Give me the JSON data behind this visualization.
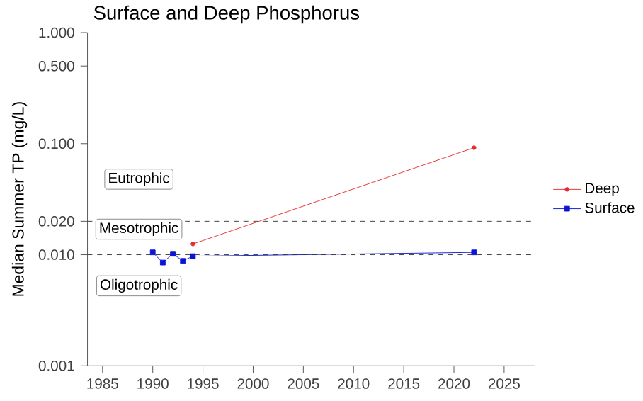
{
  "chart_data": {
    "type": "line",
    "title": "Surface and Deep Phosphorus",
    "ylabel": "Median Summer TP (mg/L)",
    "log": "y",
    "grid": false,
    "legend": "right",
    "xlim": [
      1983.5,
      2028
    ],
    "xticks": [
      1985,
      1990,
      1995,
      2000,
      2005,
      2010,
      2015,
      2020,
      2025
    ],
    "ylim": [
      0.001,
      1
    ],
    "yticks": [
      {
        "value": 0.001,
        "label": "0.001"
      },
      {
        "value": 0.01,
        "label": "0.010"
      },
      {
        "value": 0.02,
        "label": "0.020"
      },
      {
        "value": 0.1,
        "label": "0.100"
      },
      {
        "value": 0.5,
        "label": "0.500"
      },
      {
        "value": 1,
        "label": "1.000"
      }
    ],
    "series": [
      {
        "name": "Deep",
        "color": "#e8282c",
        "marker": "circle",
        "x": [
          1994,
          2022
        ],
        "values": [
          0.0125,
          0.092
        ]
      },
      {
        "name": "Surface",
        "color": "#0a14d2",
        "marker": "square",
        "x": [
          1990,
          1991,
          1992,
          1993,
          1994,
          2022
        ],
        "values": [
          0.0105,
          0.0085,
          0.0102,
          0.0088,
          0.0097,
          0.0105
        ]
      }
    ],
    "ref_lines": [
      {
        "axis": "y",
        "value": 0.02,
        "line_style": "dashed",
        "color": "#333333"
      },
      {
        "axis": "y",
        "value": 0.01,
        "line_style": "dashed",
        "color": "#333333"
      }
    ],
    "annotations": [
      "Eutrophic",
      "Mesotrophic",
      "Oligotrophic"
    ]
  }
}
